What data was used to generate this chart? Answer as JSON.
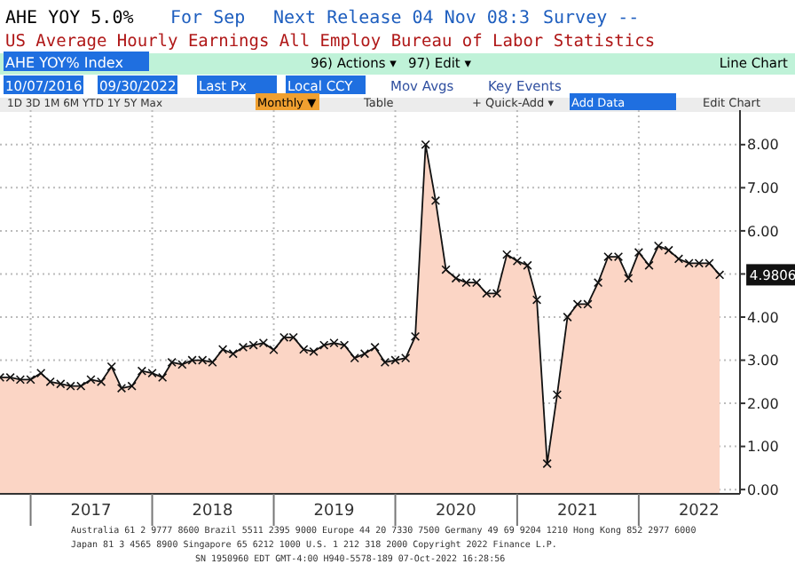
{
  "chart_data": {
    "type": "area",
    "title": "AHE YOY 5.0%",
    "subtitle": "US Average Hourly Earnings All Employ Bureau of Labor Statistics",
    "x": [
      "2016-10",
      "2016-11",
      "2016-12",
      "2017-01",
      "2017-02",
      "2017-03",
      "2017-04",
      "2017-05",
      "2017-06",
      "2017-07",
      "2017-08",
      "2017-09",
      "2017-10",
      "2017-11",
      "2017-12",
      "2018-01",
      "2018-02",
      "2018-03",
      "2018-04",
      "2018-05",
      "2018-06",
      "2018-07",
      "2018-08",
      "2018-09",
      "2018-10",
      "2018-11",
      "2018-12",
      "2019-01",
      "2019-02",
      "2019-03",
      "2019-04",
      "2019-05",
      "2019-06",
      "2019-07",
      "2019-08",
      "2019-09",
      "2019-10",
      "2019-11",
      "2019-12",
      "2020-01",
      "2020-02",
      "2020-03",
      "2020-04",
      "2020-05",
      "2020-06",
      "2020-07",
      "2020-08",
      "2020-09",
      "2020-10",
      "2020-11",
      "2020-12",
      "2021-01",
      "2021-02",
      "2021-03",
      "2021-04",
      "2021-05",
      "2021-06",
      "2021-07",
      "2021-08",
      "2021-09",
      "2021-10",
      "2021-11",
      "2021-12",
      "2022-01",
      "2022-02",
      "2022-03",
      "2022-04",
      "2022-05",
      "2022-06",
      "2022-07",
      "2022-08",
      "2022-09"
    ],
    "series": [
      {
        "color": "#fbd5c5",
        "values": [
          2.6,
          2.6,
          2.55,
          2.55,
          2.7,
          2.5,
          2.45,
          2.4,
          2.4,
          2.55,
          2.5,
          2.85,
          2.35,
          2.4,
          2.75,
          2.7,
          2.6,
          2.95,
          2.9,
          3.0,
          3.0,
          2.95,
          3.25,
          3.15,
          3.3,
          3.35,
          3.4,
          3.24,
          3.53,
          3.53,
          3.25,
          3.2,
          3.35,
          3.4,
          3.35,
          3.05,
          3.15,
          3.3,
          2.95,
          3.0,
          3.05,
          3.55,
          8.0,
          6.7,
          5.1,
          4.9,
          4.8,
          4.8,
          4.55,
          4.55,
          5.45,
          5.3,
          5.2,
          4.4,
          0.6,
          2.2,
          4.0,
          4.3,
          4.3,
          4.8,
          5.4,
          5.4,
          4.9,
          5.5,
          5.2,
          5.65,
          5.55,
          5.35,
          5.25,
          5.25,
          5.25,
          4.98
        ]
      }
    ],
    "xlim": [
      "2016-10",
      "2022-11"
    ],
    "xticks": [
      {
        "value": "2017-01",
        "label": null
      },
      {
        "value": "2017-07",
        "label": "2017"
      },
      {
        "value": "2018-01",
        "label": null
      },
      {
        "value": "2018-07",
        "label": "2018"
      },
      {
        "value": "2019-01",
        "label": null
      },
      {
        "value": "2019-07",
        "label": "2019"
      },
      {
        "value": "2020-01",
        "label": null
      },
      {
        "value": "2020-07",
        "label": "2020"
      },
      {
        "value": "2021-01",
        "label": null
      },
      {
        "value": "2021-07",
        "label": "2021"
      },
      {
        "value": "2022-01",
        "label": null
      },
      {
        "value": "2022-07",
        "label": "2022"
      }
    ],
    "ylim": [
      -0.1,
      8.8
    ],
    "yticks": [
      {
        "value": 0,
        "label": "0.00"
      },
      {
        "value": 1,
        "label": "1.00"
      },
      {
        "value": 2,
        "label": "2.00"
      },
      {
        "value": 3,
        "label": "3.00"
      },
      {
        "value": 4,
        "label": "4.00"
      },
      {
        "value": 5,
        "label": null
      },
      {
        "value": 6,
        "label": "6.00"
      },
      {
        "value": 7,
        "label": "7.00"
      },
      {
        "value": 8,
        "label": "8.00"
      }
    ],
    "grid": true,
    "marker": "cross",
    "line_style": "solid",
    "annotations": [
      "For Sep",
      "Next Release 04 Nov 08:3",
      "Survey --",
      "AHE YOY% Index",
      "96) Actions ▾",
      "97) Edit ▾",
      "Line Chart",
      "10/07/2016",
      "09/30/2022",
      "Last Px",
      "Local CCY",
      "Mov Avgs",
      "Key Events",
      "1D  3D  1M  6M  YTD  1Y  5Y  Max",
      "Monthly ▼",
      "Table",
      "+ Quick-Add ▾",
      "Add Data",
      "Edit Chart",
      "Australia 61 2 9777 8600 Brazil 5511 2395 9000 Europe 44 20 7330 7500 Germany 49 69 9204 1210 Hong Kong 852 2977 6000",
      "Japan 81 3 4565 8900 Singapore 65 6212 1000 U.S. 1 212 318 2000 Copyright 2022 Finance L.P.",
      "SN 1950960 EDT GMT-4:00 H940-5578-189 07-Oct-2022 16:28:56",
      {
        "text": "4.9806",
        "x": "2022-09",
        "y": 4.9806
      }
    ]
  }
}
